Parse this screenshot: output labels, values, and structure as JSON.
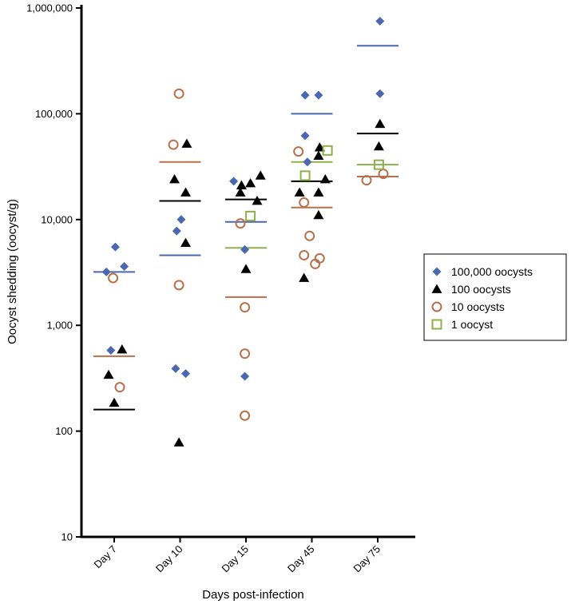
{
  "chart_data": {
    "type": "scatter",
    "yscale": "log",
    "ylim": [
      10,
      1000000
    ],
    "ylabel": "Oocyst shedding (oocyst/g)",
    "xlabel": "Days post-infection",
    "categories": [
      "Day 7",
      "Day 10",
      "Day 15",
      "Day 45",
      "Day 75"
    ],
    "yticks": [
      {
        "value": 10,
        "label": "10"
      },
      {
        "value": 100,
        "label": "100"
      },
      {
        "value": 1000,
        "label": "1,000"
      },
      {
        "value": 10000,
        "label": "10,000"
      },
      {
        "value": 100000,
        "label": "100,000"
      },
      {
        "value": 1000000,
        "label": "1,000,000"
      }
    ],
    "legend_position": "right",
    "series": [
      {
        "name": "100,000 oocysts",
        "marker": "diamond",
        "color": "#4a67b0",
        "points": [
          {
            "x": "Day 7",
            "offset": -0.35,
            "y": 3200
          },
          {
            "x": "Day 7",
            "offset": 0.05,
            "y": 5500
          },
          {
            "x": "Day 7",
            "offset": 0.45,
            "y": 3600
          },
          {
            "x": "Day 7",
            "offset": -0.15,
            "y": 580
          },
          {
            "x": "Day 10",
            "offset": -0.15,
            "y": 7800
          },
          {
            "x": "Day 10",
            "offset": 0.05,
            "y": 10000
          },
          {
            "x": "Day 10",
            "offset": -0.2,
            "y": 390
          },
          {
            "x": "Day 10",
            "offset": 0.25,
            "y": 350
          },
          {
            "x": "Day 15",
            "offset": -0.55,
            "y": 23000
          },
          {
            "x": "Day 15",
            "offset": -0.05,
            "y": 5200
          },
          {
            "x": "Day 15",
            "offset": -0.05,
            "y": 330
          },
          {
            "x": "Day 45",
            "offset": -0.3,
            "y": 150000
          },
          {
            "x": "Day 45",
            "offset": 0.3,
            "y": 150000
          },
          {
            "x": "Day 45",
            "offset": -0.3,
            "y": 62000
          },
          {
            "x": "Day 45",
            "offset": -0.2,
            "y": 35000
          },
          {
            "x": "Day 75",
            "offset": 0.1,
            "y": 750000
          },
          {
            "x": "Day 75",
            "offset": 0.1,
            "y": 155000
          }
        ],
        "median": 3200,
        "medians": [
          3200,
          4600,
          9500,
          100000,
          440000
        ]
      },
      {
        "name": "100 oocysts",
        "marker": "triangle",
        "color": "#000000",
        "points": [
          {
            "x": "Day 7",
            "offset": 0.35,
            "y": 590
          },
          {
            "x": "Day 7",
            "offset": -0.25,
            "y": 340
          },
          {
            "x": "Day 7",
            "offset": 0.0,
            "y": 185
          },
          {
            "x": "Day 10",
            "offset": 0.3,
            "y": 52000
          },
          {
            "x": "Day 10",
            "offset": -0.25,
            "y": 24000
          },
          {
            "x": "Day 10",
            "offset": 0.25,
            "y": 18000
          },
          {
            "x": "Day 10",
            "offset": 0.25,
            "y": 6000
          },
          {
            "x": "Day 10",
            "offset": -0.05,
            "y": 78
          },
          {
            "x": "Day 15",
            "offset": -0.2,
            "y": 21000
          },
          {
            "x": "Day 15",
            "offset": 0.2,
            "y": 22000
          },
          {
            "x": "Day 15",
            "offset": 0.65,
            "y": 26000
          },
          {
            "x": "Day 15",
            "offset": -0.25,
            "y": 18000
          },
          {
            "x": "Day 15",
            "offset": 0.5,
            "y": 15000
          },
          {
            "x": "Day 15",
            "offset": 0.0,
            "y": 3400
          },
          {
            "x": "Day 45",
            "offset": 0.35,
            "y": 48000
          },
          {
            "x": "Day 45",
            "offset": 0.3,
            "y": 40000
          },
          {
            "x": "Day 45",
            "offset": 0.6,
            "y": 24000
          },
          {
            "x": "Day 45",
            "offset": -0.55,
            "y": 18000
          },
          {
            "x": "Day 45",
            "offset": 0.3,
            "y": 18000
          },
          {
            "x": "Day 45",
            "offset": 0.3,
            "y": 11000
          },
          {
            "x": "Day 45",
            "offset": -0.35,
            "y": 2800
          },
          {
            "x": "Day 75",
            "offset": 0.1,
            "y": 80000
          },
          {
            "x": "Day 75",
            "offset": 0.05,
            "y": 49000
          }
        ],
        "medians": [
          160,
          15000,
          15500,
          23000,
          65000
        ]
      },
      {
        "name": "10 oocysts",
        "marker": "circle-open",
        "color": "#b8704c",
        "points": [
          {
            "x": "Day 7",
            "offset": -0.05,
            "y": 2800
          },
          {
            "x": "Day 7",
            "offset": 0.25,
            "y": 260
          },
          {
            "x": "Day 10",
            "offset": -0.05,
            "y": 155000
          },
          {
            "x": "Day 10",
            "offset": -0.3,
            "y": 51000
          },
          {
            "x": "Day 10",
            "offset": -0.05,
            "y": 2400
          },
          {
            "x": "Day 15",
            "offset": -0.25,
            "y": 9200
          },
          {
            "x": "Day 15",
            "offset": -0.05,
            "y": 1480
          },
          {
            "x": "Day 15",
            "offset": -0.05,
            "y": 540
          },
          {
            "x": "Day 15",
            "offset": -0.05,
            "y": 140
          },
          {
            "x": "Day 45",
            "offset": -0.6,
            "y": 44000
          },
          {
            "x": "Day 45",
            "offset": -0.35,
            "y": 14500
          },
          {
            "x": "Day 45",
            "offset": -0.1,
            "y": 7000
          },
          {
            "x": "Day 45",
            "offset": -0.35,
            "y": 4600
          },
          {
            "x": "Day 45",
            "offset": 0.35,
            "y": 4300
          },
          {
            "x": "Day 45",
            "offset": 0.15,
            "y": 3800
          },
          {
            "x": "Day 75",
            "offset": -0.5,
            "y": 23500
          },
          {
            "x": "Day 75",
            "offset": 0.25,
            "y": 27000
          }
        ],
        "medians": [
          510,
          35000,
          1850,
          13000,
          25500
        ]
      },
      {
        "name": "1 oocyst",
        "marker": "square-open",
        "color": "#8db04a",
        "points": [
          {
            "x": "Day 15",
            "offset": 0.2,
            "y": 10800
          },
          {
            "x": "Day 45",
            "offset": 0.7,
            "y": 45000
          },
          {
            "x": "Day 45",
            "offset": -0.3,
            "y": 26000
          },
          {
            "x": "Day 75",
            "offset": 0.05,
            "y": 33000
          }
        ],
        "medians": [
          null,
          null,
          5400,
          35000,
          33000
        ]
      }
    ]
  }
}
